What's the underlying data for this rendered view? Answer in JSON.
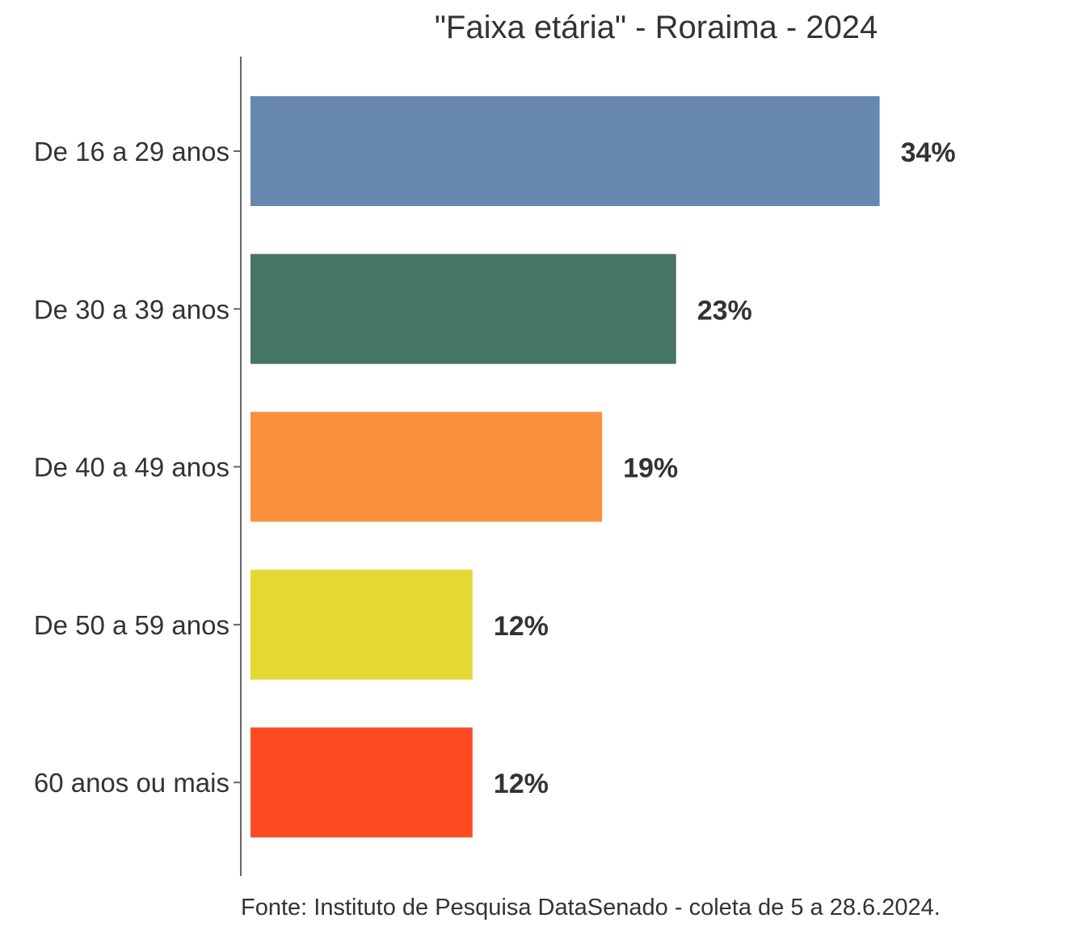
{
  "chart_data": {
    "type": "bar",
    "orientation": "horizontal",
    "title": "\"Faixa etária\" - Roraima - 2024",
    "caption": "Fonte: Instituto de Pesquisa DataSenado - coleta de 5 a 28.6.2024.",
    "categories": [
      "De 16 a 29 anos",
      "De 30 a 39 anos",
      "De 40 a 49 anos",
      "De 50 a 59 anos",
      "60 anos ou mais"
    ],
    "values": [
      34,
      23,
      19,
      12,
      12
    ],
    "value_labels": [
      "34%",
      "23%",
      "19%",
      "12%",
      "12%"
    ],
    "colors": [
      "#6688B0",
      "#467563",
      "#F9913C",
      "#E5D835",
      "#FF4B22"
    ],
    "unit": "%",
    "xlim": [
      0,
      40
    ],
    "grid": false,
    "legend": "none"
  }
}
